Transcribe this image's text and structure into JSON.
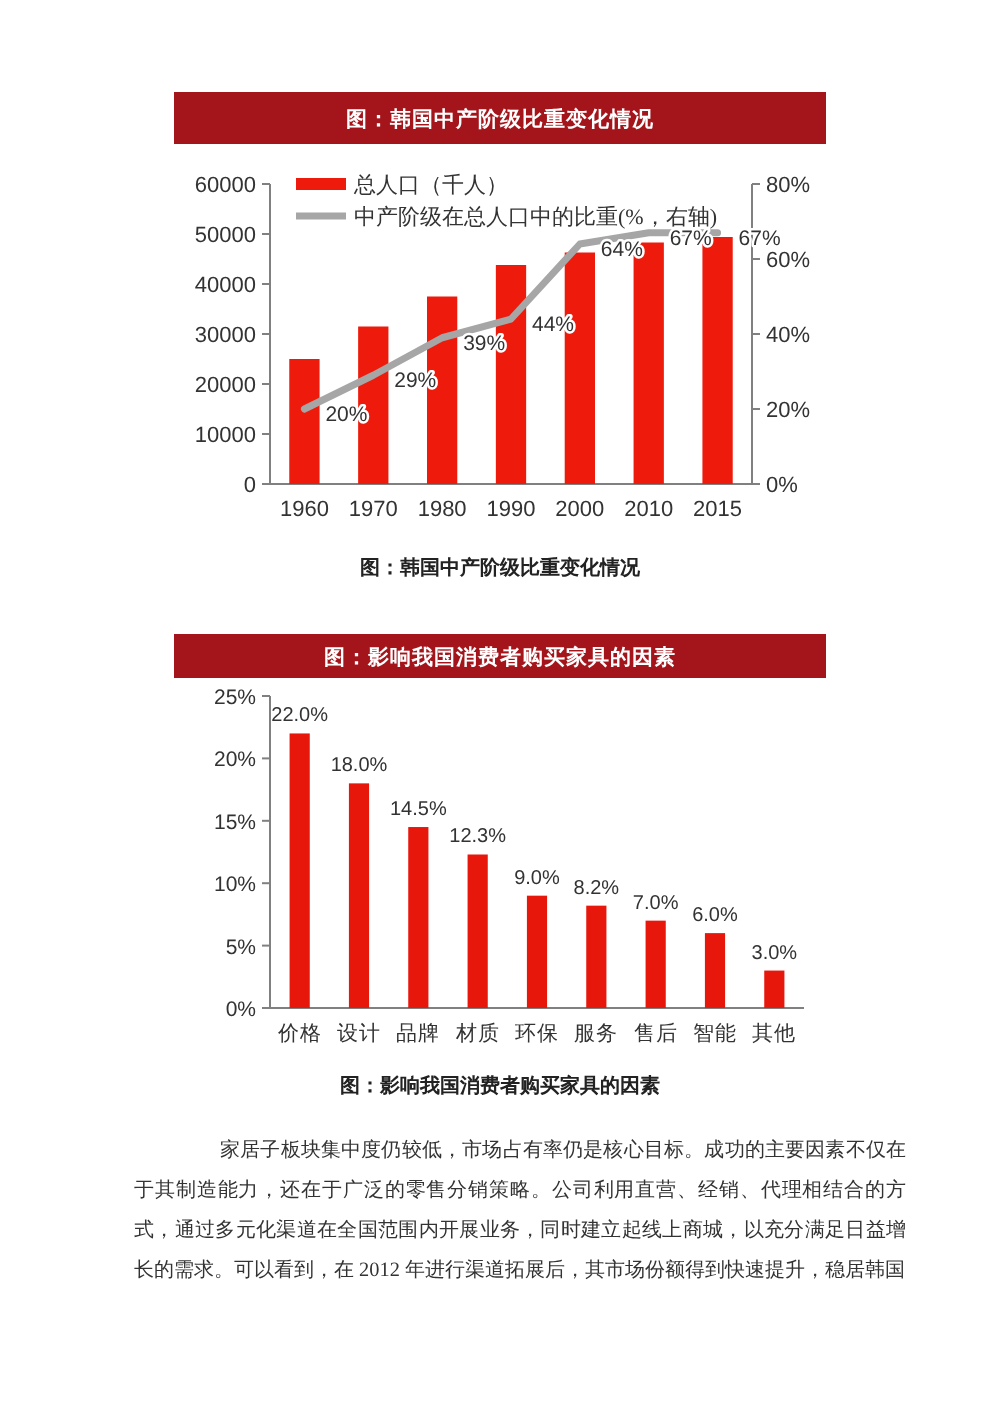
{
  "chart_data": [
    {
      "type": "bar",
      "title": "图：韩国中产阶级比重变化情况",
      "categories": [
        "1960",
        "1970",
        "1980",
        "1990",
        "2000",
        "2010",
        "2015"
      ],
      "series": [
        {
          "name": "总人口（千人）",
          "color": "#ee1b0c",
          "values": [
            25000,
            31500,
            37500,
            43800,
            46300,
            48300,
            49400
          ]
        },
        {
          "name": "中产阶级在总人口中的比重(%，右轴)",
          "type": "line",
          "axis": "y2",
          "color": "#a6a6a6",
          "values": [
            20,
            29,
            39,
            44,
            64,
            67,
            67
          ],
          "value_labels": [
            "20%",
            "29%",
            "39%",
            "44%",
            "64%",
            "67%",
            "67%"
          ]
        }
      ],
      "ylim": [
        0,
        60000
      ],
      "yticks": [
        0,
        10000,
        20000,
        30000,
        40000,
        50000,
        60000
      ],
      "y2lim": [
        0,
        80
      ],
      "y2ticks": [
        {
          "value": 0,
          "label": "0%"
        },
        {
          "value": 20,
          "label": "20%"
        },
        {
          "value": 40,
          "label": "40%"
        },
        {
          "value": 60,
          "label": "60%"
        },
        {
          "value": 80,
          "label": "80%"
        }
      ],
      "legend": "top left",
      "annotations": [
        "图：韩国中产阶级比重变化情况"
      ]
    },
    {
      "type": "bar",
      "title": "图：影响我国消费者购买家具的因素",
      "categories": [
        "价格",
        "设计",
        "品牌",
        "材质",
        "环保",
        "服务",
        "售后",
        "智能",
        "其他"
      ],
      "values": [
        22.0,
        18.0,
        14.5,
        12.3,
        9.0,
        8.2,
        7.0,
        6.0,
        3.0
      ],
      "color": "#e8170c",
      "value_labels": [
        "22.0%",
        "18.0%",
        "14.5%",
        "12.3%",
        "9.0%",
        "8.2%",
        "7.0%",
        "6.0%",
        "3.0%"
      ],
      "ylim": [
        0,
        25
      ],
      "yticks": [
        {
          "value": 0,
          "label": "0%"
        },
        {
          "value": 5,
          "label": "5%"
        },
        {
          "value": 10,
          "label": "10%"
        },
        {
          "value": 15,
          "label": "15%"
        },
        {
          "value": 20,
          "label": "20%"
        },
        {
          "value": 25,
          "label": "25%"
        }
      ],
      "annotations": [
        "图：影响我国消费者购买家具的因素",
        "家居子板块集中度仍较低，市场占有率仍是核心目标。成功的主要因素不仅在于其制造能力，还在于广泛的零售分销策略。公司利用直营、经销、代理相结合的方式，通过多元化渠道在全国范围内开展业务，同时建立起线上商城，以充分满足日益增长的需求。可以看到，在 2012 年进行渠道拓展后，其市场份额得到快速提升，稳居韩国"
      ]
    }
  ]
}
